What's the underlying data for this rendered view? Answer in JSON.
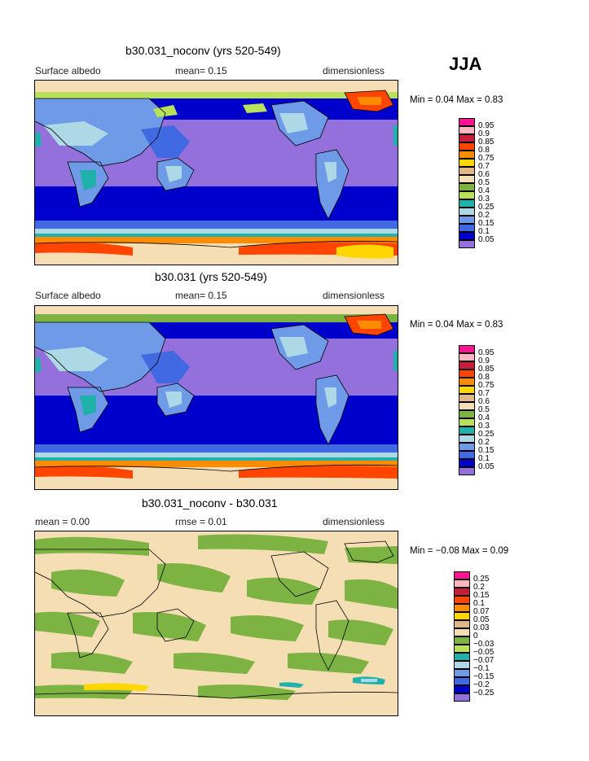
{
  "season": "JJA",
  "panels": [
    {
      "title": "b30.031_noconv (yrs 520-549)",
      "left": "Surface albedo",
      "center": "mean=   0.15",
      "right": "dimensionless",
      "minmax": "Min =   0.04  Max =    0.83",
      "colorbar": {
        "labels": [
          "0.95",
          "0.9",
          "0.85",
          "0.8",
          "0.75",
          "0.7",
          "0.6",
          "0.5",
          "0.4",
          "0.3",
          "0.25",
          "0.2",
          "0.15",
          "0.1",
          "0.05"
        ],
        "colors": [
          "#ff1493",
          "#ffb6c1",
          "#c81e3a",
          "#ff4500",
          "#ff8c00",
          "#ffd700",
          "#deb887",
          "#f5deb3",
          "#7cb342",
          "#b8e05a",
          "#20b2aa",
          "#add8e6",
          "#6f9ae8",
          "#4169e1",
          "#0000cd",
          "#9370db"
        ]
      }
    },
    {
      "title": "b30.031 (yrs 520-549)",
      "left": "Surface albedo",
      "center": "mean=   0.15",
      "right": "dimensionless",
      "minmax": "Min =   0.04  Max =    0.83",
      "colorbar": {
        "labels": [
          "0.95",
          "0.9",
          "0.85",
          "0.8",
          "0.75",
          "0.7",
          "0.6",
          "0.5",
          "0.4",
          "0.3",
          "0.25",
          "0.2",
          "0.15",
          "0.1",
          "0.05"
        ],
        "colors": [
          "#ff1493",
          "#ffb6c1",
          "#c81e3a",
          "#ff4500",
          "#ff8c00",
          "#ffd700",
          "#deb887",
          "#f5deb3",
          "#7cb342",
          "#b8e05a",
          "#20b2aa",
          "#add8e6",
          "#6f9ae8",
          "#4169e1",
          "#0000cd",
          "#9370db"
        ]
      }
    },
    {
      "title": "b30.031_noconv - b30.031",
      "left": "mean =    0.00",
      "center": "rmse =    0.01",
      "right": "dimensionless",
      "minmax": "Min =   −0.08  Max =     0.09",
      "colorbar": {
        "labels": [
          "0.25",
          "0.2",
          "0.15",
          "0.1",
          "0.07",
          "0.05",
          "0.03",
          "0",
          "−0.03",
          "−0.05",
          "−0.07",
          "−0.1",
          "−0.15",
          "−0.2",
          "−0.25"
        ],
        "colors": [
          "#ff1493",
          "#ffb6c1",
          "#c81e3a",
          "#ff4500",
          "#ff8c00",
          "#ffd700",
          "#deb887",
          "#f5deb3",
          "#7cb342",
          "#b8e05a",
          "#20b2aa",
          "#add8e6",
          "#6f9ae8",
          "#4169e1",
          "#0000cd",
          "#9370db"
        ]
      }
    }
  ],
  "chart_data": [
    {
      "type": "heatmap",
      "title": "b30.031_noconv (yrs 520-549)",
      "variable": "Surface albedo",
      "units": "dimensionless",
      "mean": 0.15,
      "min": 0.04,
      "max": 0.83,
      "levels": [
        0.05,
        0.1,
        0.15,
        0.2,
        0.25,
        0.3,
        0.4,
        0.5,
        0.6,
        0.7,
        0.75,
        0.8,
        0.85,
        0.9,
        0.95
      ]
    },
    {
      "type": "heatmap",
      "title": "b30.031 (yrs 520-549)",
      "variable": "Surface albedo",
      "units": "dimensionless",
      "mean": 0.15,
      "min": 0.04,
      "max": 0.83,
      "levels": [
        0.05,
        0.1,
        0.15,
        0.2,
        0.25,
        0.3,
        0.4,
        0.5,
        0.6,
        0.7,
        0.75,
        0.8,
        0.85,
        0.9,
        0.95
      ]
    },
    {
      "type": "heatmap",
      "title": "b30.031_noconv - b30.031",
      "units": "dimensionless",
      "mean": 0.0,
      "rmse": 0.01,
      "min": -0.08,
      "max": 0.09,
      "levels": [
        -0.25,
        -0.2,
        -0.15,
        -0.1,
        -0.07,
        -0.05,
        -0.03,
        0,
        0.03,
        0.05,
        0.07,
        0.1,
        0.15,
        0.2,
        0.25
      ]
    }
  ]
}
